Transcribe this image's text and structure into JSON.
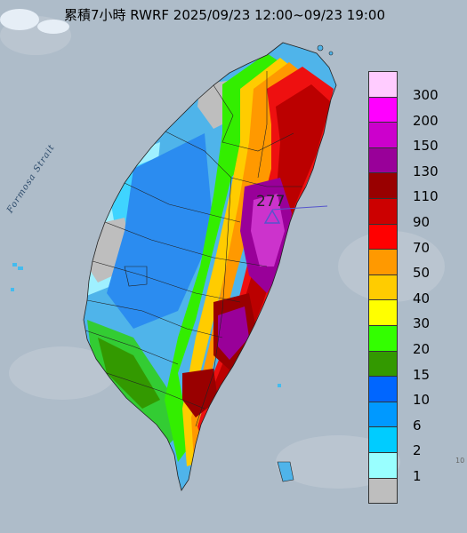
{
  "title": "累積7小時 RWRF 2025/09/23 12:00~09/23 19:00",
  "map_labels": {
    "strait": "Formosa Strait",
    "peak_value": "277",
    "corner_mark": "10"
  },
  "legend": [
    {
      "label": "300",
      "color": "#ffccff"
    },
    {
      "label": "200",
      "color": "#ff00ff"
    },
    {
      "label": "150",
      "color": "#cc00cc"
    },
    {
      "label": "130",
      "color": "#990099"
    },
    {
      "label": "110",
      "color": "#990000"
    },
    {
      "label": "90",
      "color": "#cc0000"
    },
    {
      "label": "70",
      "color": "#ff0000"
    },
    {
      "label": "50",
      "color": "#ff9900"
    },
    {
      "label": "40",
      "color": "#ffcc00"
    },
    {
      "label": "30",
      "color": "#ffff00"
    },
    {
      "label": "20",
      "color": "#33ff00"
    },
    {
      "label": "15",
      "color": "#339900"
    },
    {
      "label": "10",
      "color": "#0066ff"
    },
    {
      "label": "6",
      "color": "#0099ff"
    },
    {
      "label": "2",
      "color": "#00ccff"
    },
    {
      "label": "1",
      "color": "#99ffff"
    },
    {
      "label": "",
      "color": "#bebebe"
    }
  ],
  "colors": {
    "sea": "#aebcc9",
    "no_rain": "#bebebe",
    "marker": "#5555cc"
  }
}
